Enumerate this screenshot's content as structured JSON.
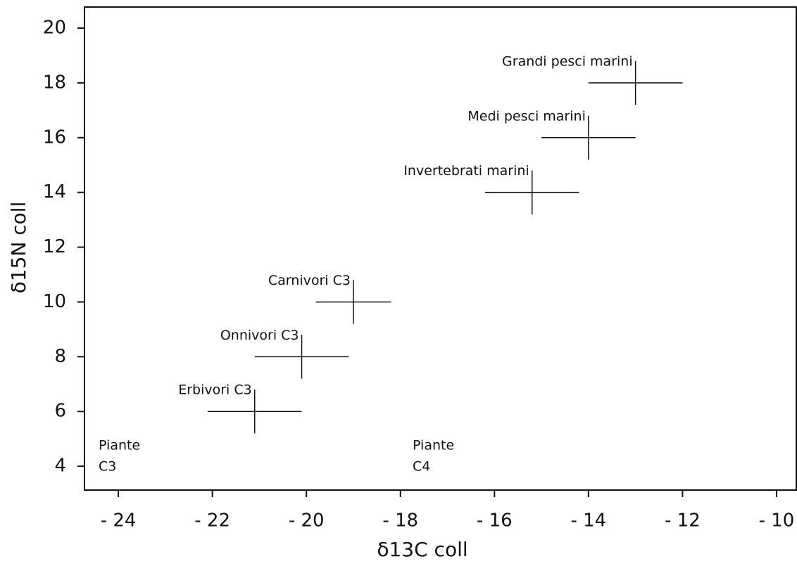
{
  "chart_data": {
    "type": "scatter",
    "x_label": "δ13C coll",
    "y_label": "δ15N coll",
    "xlim": [
      -24.72,
      -9.58
    ],
    "ylim": [
      3.13,
      20.77
    ],
    "xticks": [
      {
        "value": -24,
        "label": "- 24"
      },
      {
        "value": -22,
        "label": "- 22"
      },
      {
        "value": -20,
        "label": "- 20"
      },
      {
        "value": -18,
        "label": "- 18"
      },
      {
        "value": -16,
        "label": "- 16"
      },
      {
        "value": -14,
        "label": "- 14"
      },
      {
        "value": -12,
        "label": "- 12"
      },
      {
        "value": -10,
        "label": "- 10"
      }
    ],
    "yticks": [
      4,
      6,
      8,
      10,
      12,
      14,
      16,
      18,
      20
    ],
    "color": "#111111",
    "points": [
      {
        "label": "Grandi pesci marini",
        "x": -13,
        "y": 18,
        "xerr": 1,
        "yerr": 0.8
      },
      {
        "label": "Medi pesci marini",
        "x": -14,
        "y": 16,
        "xerr": 1,
        "yerr": 0.8
      },
      {
        "label": "Invertebrati marini",
        "x": -15.2,
        "y": 14,
        "xerr": 1,
        "yerr": 0.8
      },
      {
        "label": "Carnivori C3",
        "x": -19,
        "y": 10,
        "xerr": 0.8,
        "yerr": 0.8
      },
      {
        "label": "Onnivori C3",
        "x": -20.1,
        "y": 8,
        "xerr": 1,
        "yerr": 0.8
      },
      {
        "label": "Erbivori  C3",
        "x": -21.1,
        "y": 6,
        "xerr": 1,
        "yerr": 0.8
      }
    ],
    "annotations": [
      [
        "Piante",
        "C3"
      ],
      [
        "Piante",
        "C4"
      ]
    ]
  }
}
